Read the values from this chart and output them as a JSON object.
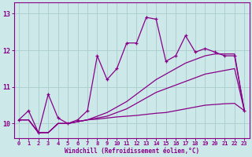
{
  "x": [
    0,
    1,
    2,
    3,
    4,
    5,
    6,
    7,
    8,
    9,
    10,
    11,
    12,
    13,
    14,
    15,
    16,
    17,
    18,
    19,
    20,
    21,
    22,
    23
  ],
  "line1": [
    10.1,
    10.35,
    9.75,
    10.8,
    10.15,
    10.0,
    10.1,
    10.35,
    11.85,
    11.2,
    11.5,
    12.2,
    12.2,
    12.9,
    12.85,
    11.7,
    11.85,
    12.4,
    11.95,
    12.05,
    11.95,
    11.85,
    11.85,
    10.35
  ],
  "line2": [
    10.1,
    10.1,
    9.75,
    9.75,
    10.0,
    10.0,
    10.05,
    10.1,
    10.2,
    10.3,
    10.45,
    10.6,
    10.8,
    11.0,
    11.2,
    11.35,
    11.5,
    11.65,
    11.75,
    11.85,
    11.9,
    11.9,
    11.9,
    10.35
  ],
  "line3": [
    10.1,
    10.1,
    9.75,
    9.75,
    10.0,
    10.0,
    10.05,
    10.1,
    10.15,
    10.2,
    10.3,
    10.4,
    10.55,
    10.7,
    10.85,
    10.95,
    11.05,
    11.15,
    11.25,
    11.35,
    11.4,
    11.45,
    11.5,
    10.35
  ],
  "line4": [
    10.1,
    10.1,
    9.75,
    9.75,
    10.0,
    10.0,
    10.05,
    10.1,
    10.12,
    10.15,
    10.18,
    10.2,
    10.22,
    10.25,
    10.28,
    10.3,
    10.35,
    10.4,
    10.45,
    10.5,
    10.52,
    10.54,
    10.55,
    10.35
  ],
  "bg_color": "#cce8e8",
  "grid_color": "#aacccc",
  "line_color": "#880088",
  "xlabel": "Windchill (Refroidissement éolien,°C)",
  "ylim": [
    9.6,
    13.3
  ],
  "xlim": [
    -0.5,
    23.5
  ],
  "yticks": [
    10,
    11,
    12,
    13
  ],
  "xticks": [
    0,
    1,
    2,
    3,
    4,
    5,
    6,
    7,
    8,
    9,
    10,
    11,
    12,
    13,
    14,
    15,
    16,
    17,
    18,
    19,
    20,
    21,
    22,
    23
  ]
}
